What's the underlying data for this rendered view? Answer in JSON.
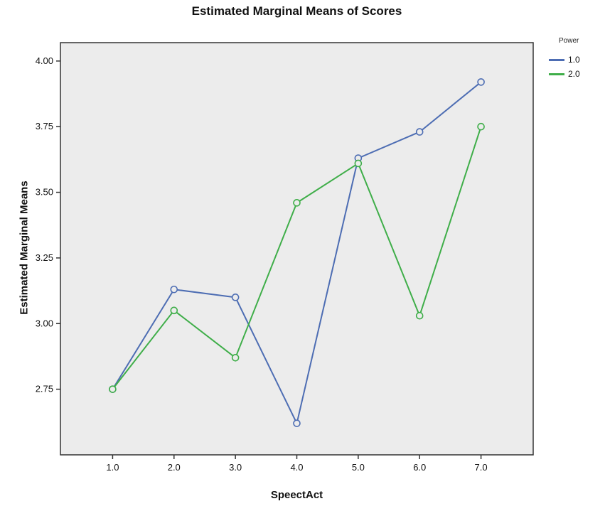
{
  "chart_data": {
    "type": "line",
    "title": "Estimated Marginal Means of Scores",
    "xlabel": "SpeectAct",
    "ylabel": "Estimated Marginal Means",
    "legend_title": "Power",
    "x": [
      1,
      2,
      3,
      4,
      5,
      6,
      7
    ],
    "x_tick_labels": [
      "1.0",
      "2.0",
      "3.0",
      "4.0",
      "5.0",
      "6.0",
      "7.0"
    ],
    "y_ticks": [
      2.75,
      3.0,
      3.25,
      3.5,
      3.75,
      4.0
    ],
    "y_tick_labels": [
      "2.75",
      "3.00",
      "3.25",
      "3.50",
      "3.75",
      "4.00"
    ],
    "xlim": [
      0.15,
      7.85
    ],
    "ylim": [
      2.5,
      4.07
    ],
    "grid": false,
    "legend_position": "top-right-outside",
    "plot_background": "#ececec",
    "plot_border_color": "#333333",
    "series": [
      {
        "name": "1.0",
        "color": "#4d6db3",
        "values": [
          2.75,
          3.13,
          3.1,
          2.62,
          3.63,
          3.73,
          3.92
        ]
      },
      {
        "name": "2.0",
        "color": "#3fae49",
        "values": [
          2.75,
          3.05,
          2.87,
          3.46,
          3.61,
          3.03,
          3.75
        ]
      }
    ]
  }
}
